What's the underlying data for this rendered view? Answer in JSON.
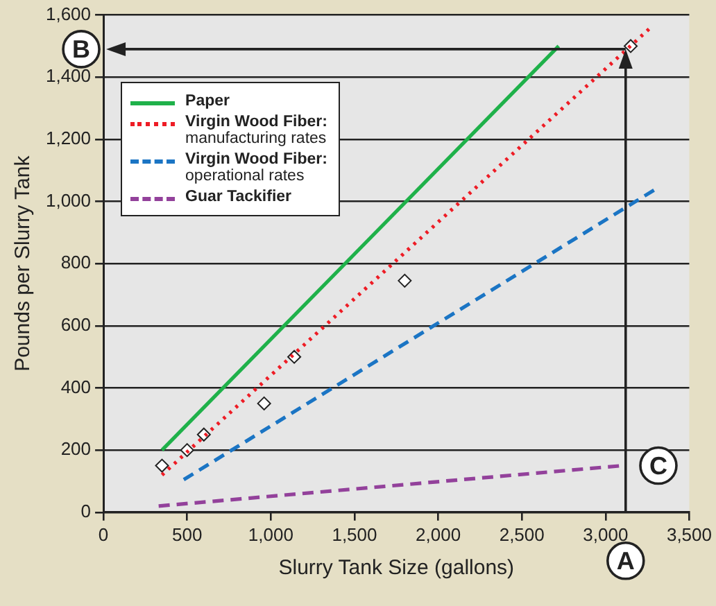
{
  "chart_data": {
    "type": "line",
    "xlabel": "Slurry Tank Size (gallons)",
    "ylabel": "Pounds per Slurry Tank",
    "xlim": [
      0,
      3500
    ],
    "xticks": [
      {
        "value": 0,
        "label": "0"
      },
      {
        "value": 500,
        "label": "500"
      },
      {
        "value": 1000,
        "label": "1,000"
      },
      {
        "value": 1500,
        "label": "1,500"
      },
      {
        "value": 2000,
        "label": "2,000"
      },
      {
        "value": 2500,
        "label": "2,500"
      },
      {
        "value": 3000,
        "label": "3,000"
      },
      {
        "value": 3500,
        "label": "3,500"
      }
    ],
    "ylim": [
      0,
      1600
    ],
    "yticks": [
      {
        "value": 0,
        "label": "0"
      },
      {
        "value": 200,
        "label": "200"
      },
      {
        "value": 400,
        "label": "400"
      },
      {
        "value": 600,
        "label": "600"
      },
      {
        "value": 800,
        "label": "800"
      },
      {
        "value": 1000,
        "label": "1,000"
      },
      {
        "value": 1200,
        "label": "1,200"
      },
      {
        "value": 1400,
        "label": "1,400"
      },
      {
        "value": 1600,
        "label": "1,600"
      }
    ],
    "grid": "y",
    "legend": "top left",
    "series": [
      {
        "name": "Paper",
        "color": "#1fb14a",
        "line_style": "solid",
        "x": [
          350,
          2720
        ],
        "values": [
          200,
          1500
        ]
      },
      {
        "name": "Virgin Wood Fiber:\nmanufacturing rates",
        "color": "#ee1c25",
        "line_style": "dotted",
        "x": [
          350,
          3270
        ],
        "values": [
          120,
          1560
        ]
      },
      {
        "name": "Virgin Wood Fiber:\noperational rates",
        "color": "#1b75c4",
        "line_style": "dashed",
        "x": [
          480,
          3300
        ],
        "values": [
          105,
          1040
        ]
      },
      {
        "name": "Guar Tackifier",
        "color": "#93419b",
        "line_style": "dashed",
        "x": [
          330,
          3100
        ],
        "values": [
          20,
          150
        ]
      },
      {
        "type": "scatter",
        "color": "#ffffff",
        "marker": "diamond",
        "x": [
          350,
          500,
          600,
          960,
          1140,
          1800,
          3150
        ],
        "values": [
          150,
          200,
          250,
          350,
          500,
          745,
          1500
        ]
      }
    ],
    "ref_lines": [
      {
        "axis": "x",
        "value": 3120,
        "label": "A"
      },
      {
        "axis": "y",
        "value": 1490,
        "label": "B"
      }
    ],
    "annotations": [
      {
        "text": "C",
        "x": 3100,
        "y": 150
      }
    ]
  }
}
